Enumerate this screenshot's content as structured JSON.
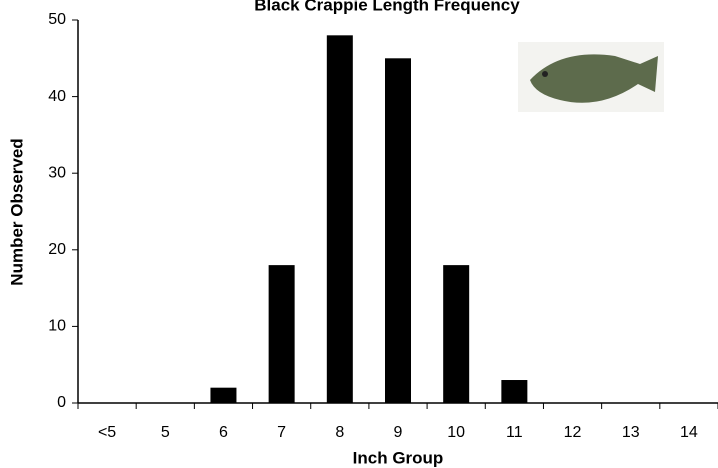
{
  "chart_data": {
    "type": "bar",
    "title": "Black Crappie Length Frequency",
    "x_label": "Inch Group",
    "y_label": "Number Observed",
    "categories": [
      "<5",
      "5",
      "6",
      "7",
      "8",
      "9",
      "10",
      "11",
      "12",
      "13",
      "14"
    ],
    "values": [
      0,
      0,
      2,
      18,
      48,
      45,
      18,
      3,
      0,
      0,
      0
    ],
    "color": "#000000",
    "ylim": [
      0,
      50
    ],
    "yticks": [
      0,
      10,
      20,
      30,
      40,
      50
    ],
    "grid": false
  }
}
